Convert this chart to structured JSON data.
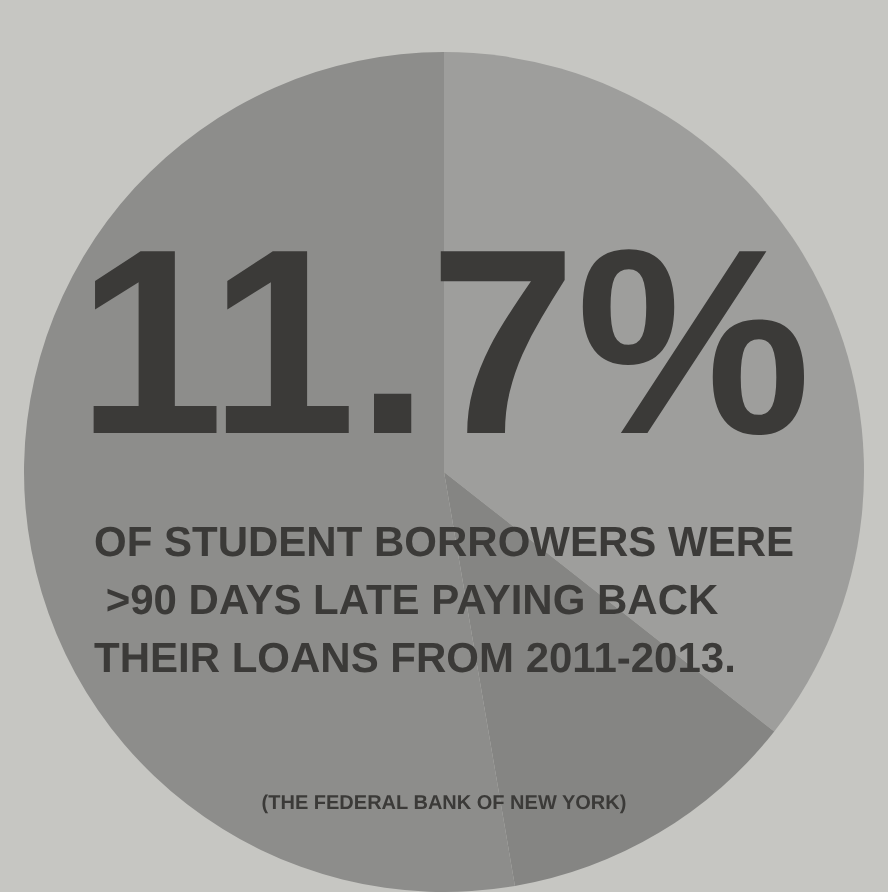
{
  "chart_data": {
    "type": "pie",
    "title": "11.7%",
    "subtitle": "OF STUDENT BORROWERS WERE >90 DAYS LATE PAYING BACK THEIR LOANS FROM 2011-2013.",
    "annotations": [
      "(THE FEDERAL BANK OF NEW YORK)"
    ],
    "categories": [
      null,
      null,
      null
    ],
    "values": [
      35.6,
      11.7,
      52.7
    ],
    "colors": [
      "#9e9e9c",
      "#858583",
      "#8d8d8b"
    ]
  }
}
